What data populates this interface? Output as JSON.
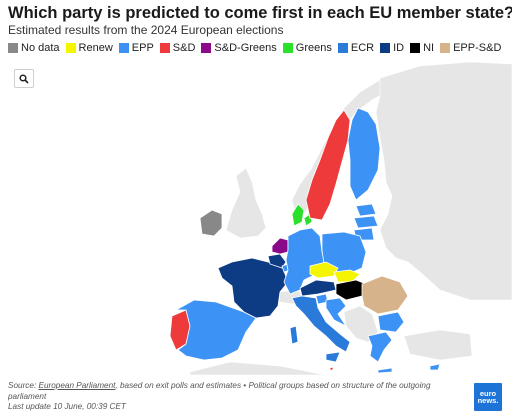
{
  "title": "Which party is predicted to come first in each EU member state?",
  "subtitle": "Estimated results from the 2024 European elections",
  "legend": [
    {
      "label": "No data",
      "color": "#888888"
    },
    {
      "label": "Renew",
      "color": "#f5f500"
    },
    {
      "label": "EPP",
      "color": "#3d93f5"
    },
    {
      "label": "S&D",
      "color": "#ee3a3a"
    },
    {
      "label": "S&D-Greens",
      "color": "#8a0a8a"
    },
    {
      "label": "Greens",
      "color": "#2be02b"
    },
    {
      "label": "ECR",
      "color": "#2a7ad9"
    },
    {
      "label": "ID",
      "color": "#0e3c84"
    },
    {
      "label": "NI",
      "color": "#000000"
    },
    {
      "label": "EPP-S&D",
      "color": "#d7b38c"
    }
  ],
  "zoom_icon": "search-icon",
  "background_land_color": "#e6e6e6",
  "countries": [
    {
      "name": "Ireland",
      "party": "No data"
    },
    {
      "name": "Portugal",
      "party": "S&D"
    },
    {
      "name": "Spain",
      "party": "EPP"
    },
    {
      "name": "France",
      "party": "ID"
    },
    {
      "name": "Belgium",
      "party": "ID"
    },
    {
      "name": "Netherlands",
      "party": "S&D-Greens"
    },
    {
      "name": "Luxembourg",
      "party": "EPP"
    },
    {
      "name": "Germany",
      "party": "EPP"
    },
    {
      "name": "Denmark",
      "party": "Greens"
    },
    {
      "name": "Sweden",
      "party": "S&D"
    },
    {
      "name": "Finland",
      "party": "EPP"
    },
    {
      "name": "Estonia",
      "party": "EPP"
    },
    {
      "name": "Latvia",
      "party": "EPP"
    },
    {
      "name": "Lithuania",
      "party": "EPP"
    },
    {
      "name": "Poland",
      "party": "EPP"
    },
    {
      "name": "Czechia",
      "party": "Renew"
    },
    {
      "name": "Slovakia",
      "party": "Renew"
    },
    {
      "name": "Austria",
      "party": "ID"
    },
    {
      "name": "Hungary",
      "party": "NI"
    },
    {
      "name": "Romania",
      "party": "EPP-S&D"
    },
    {
      "name": "Bulgaria",
      "party": "EPP"
    },
    {
      "name": "Slovenia",
      "party": "EPP"
    },
    {
      "name": "Croatia",
      "party": "EPP"
    },
    {
      "name": "Italy",
      "party": "ECR"
    },
    {
      "name": "Greece",
      "party": "EPP"
    },
    {
      "name": "Cyprus",
      "party": "EPP"
    },
    {
      "name": "Malta",
      "party": "S&D"
    }
  ],
  "footer": {
    "source_prefix": "Source: ",
    "source_link": "European Parliament",
    "source_rest": ", based on exit polls and estimates • Political groups based on structure of the outgoing parliament",
    "last_update": "Last update 10 June, 00:39 CET"
  },
  "logo": {
    "line1": "euro",
    "line2": "news."
  }
}
